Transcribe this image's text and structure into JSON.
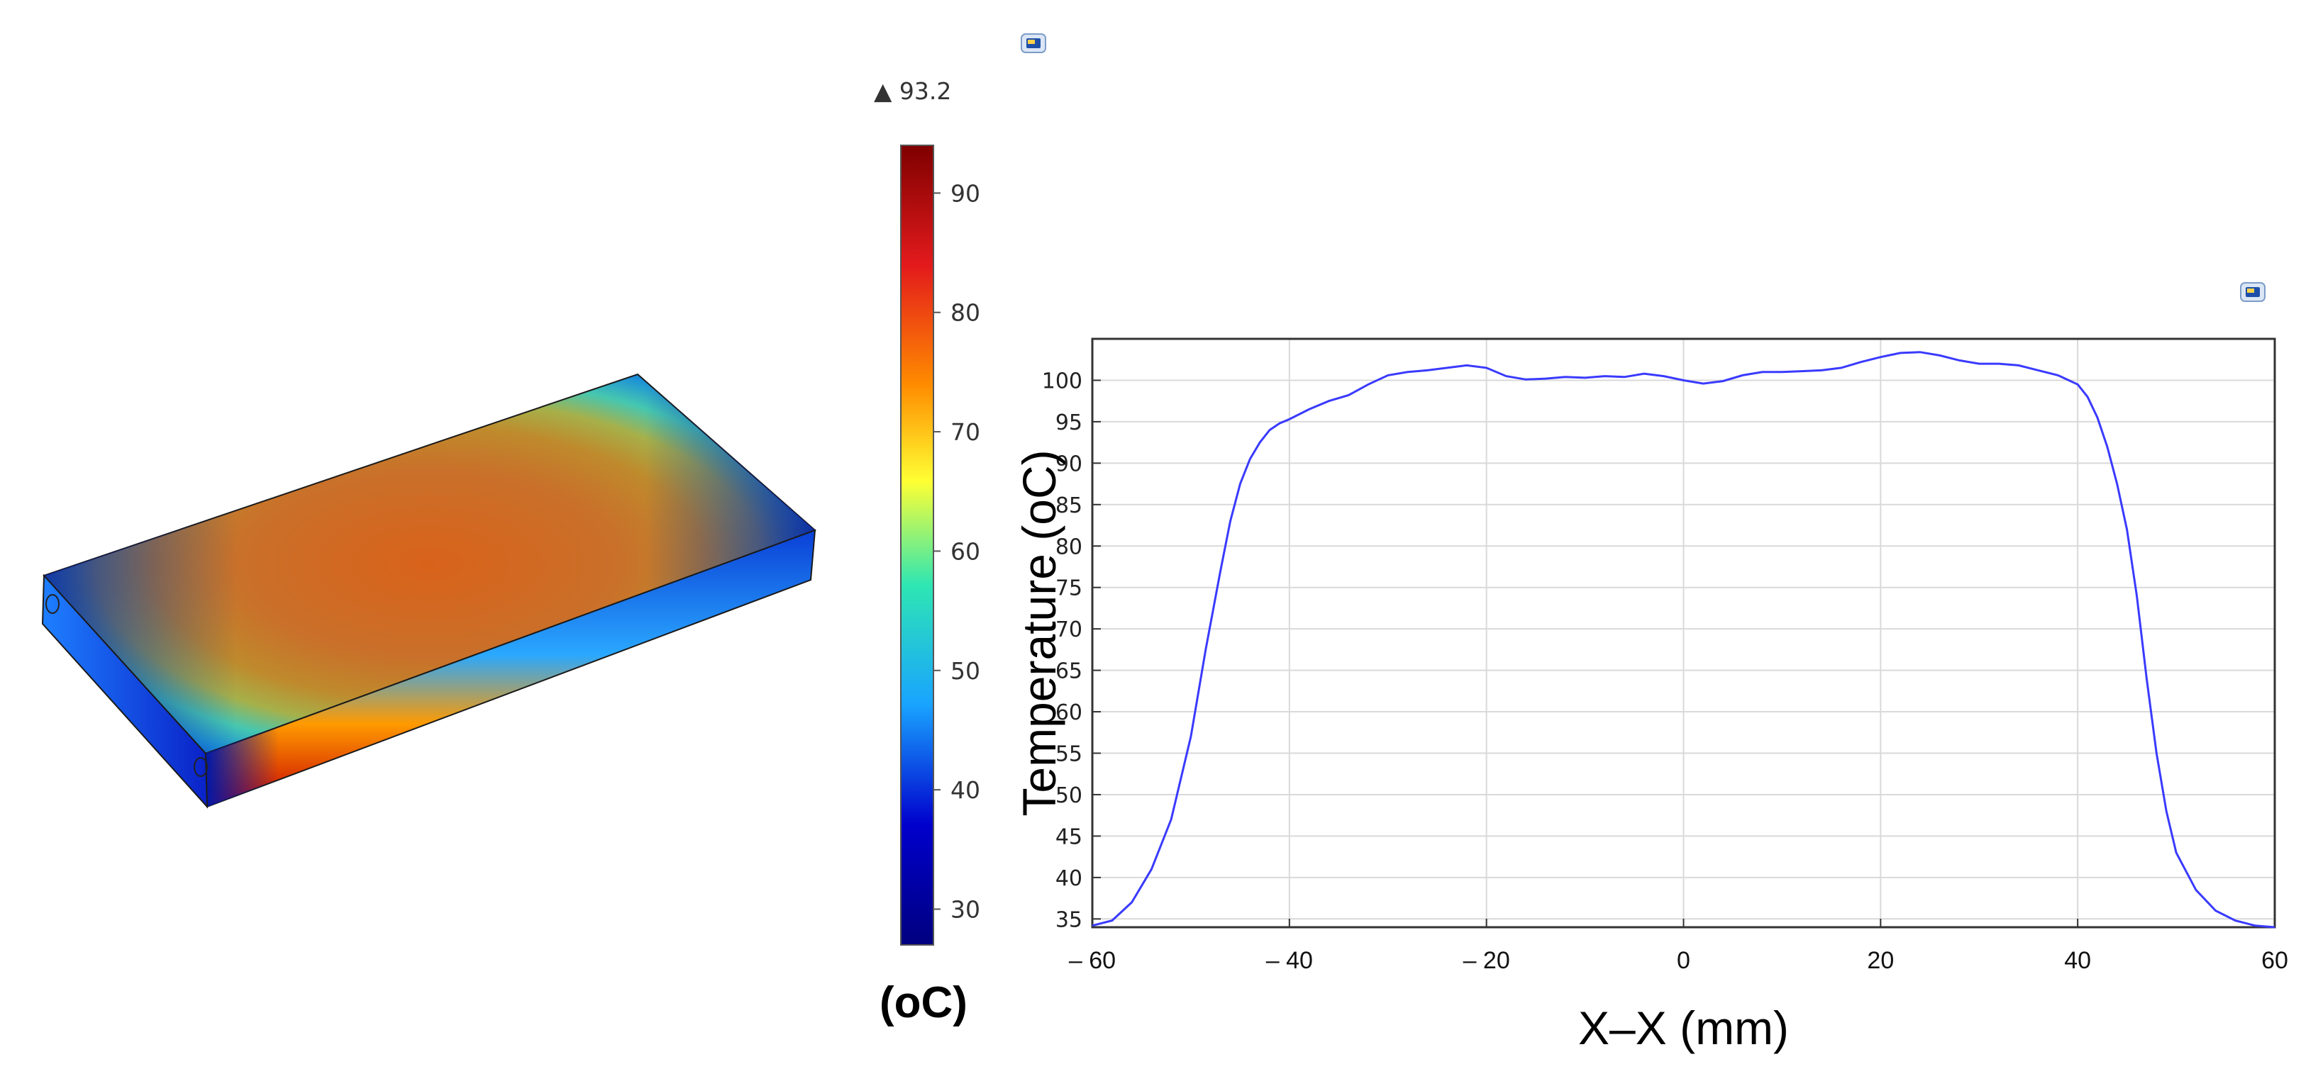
{
  "colorbar": {
    "max_marker": "▲ 93.2",
    "max_value": 93.2,
    "ticks": [
      "90",
      "80",
      "70",
      "60",
      "50",
      "40",
      "30"
    ],
    "range": [
      27,
      94
    ],
    "unit": "(oC)",
    "colormap": [
      "#7f0000",
      "#e31a1c",
      "#ff8c00",
      "#ffff33",
      "#2ee6b3",
      "#19a3ff",
      "#0000cc",
      "#00007f"
    ]
  },
  "icons": [
    "window-icon",
    "window-icon"
  ],
  "chart_data": {
    "type": "line",
    "xlabel": "X–X (mm)",
    "ylabel": "Temperature (oC)",
    "xlim": [
      -60,
      60
    ],
    "ylim": [
      34,
      105
    ],
    "grid": true,
    "x_tick_labels": [
      "– 60",
      "– 40",
      "– 20",
      "0",
      "20",
      "40",
      "60"
    ],
    "x_tick_values": [
      -60,
      -40,
      -20,
      0,
      20,
      40,
      60
    ],
    "y_ticks": [
      35,
      40,
      45,
      50,
      55,
      60,
      65,
      70,
      75,
      80,
      85,
      90,
      95,
      100
    ],
    "series": [
      {
        "color": "#3a3aff",
        "x": [
          -60,
          -58,
          -56,
          -54,
          -52,
          -50,
          -48.5,
          -47,
          -46,
          -45,
          -44,
          -43,
          -42,
          -41,
          -40,
          -38,
          -36,
          -34,
          -32,
          -30,
          -28,
          -26,
          -24,
          -22,
          -20,
          -18,
          -16,
          -14,
          -12,
          -10,
          -8,
          -6,
          -4,
          -2,
          0,
          2,
          4,
          6,
          8,
          10,
          12,
          14,
          16,
          18,
          20,
          22,
          24,
          26,
          28,
          30,
          32,
          34,
          36,
          38,
          40,
          41,
          42,
          43,
          44,
          45,
          46,
          47,
          48,
          49,
          50,
          52,
          54,
          56,
          58,
          60
        ],
        "y": [
          34.2,
          34.8,
          37,
          41,
          47,
          57,
          67.5,
          77,
          83,
          87.5,
          90.5,
          92.5,
          94,
          94.8,
          95.3,
          96.5,
          97.5,
          98.2,
          99.5,
          100.6,
          101,
          101.2,
          101.5,
          101.8,
          101.5,
          100.5,
          100.1,
          100.2,
          100.4,
          100.3,
          100.5,
          100.4,
          100.8,
          100.5,
          100,
          99.6,
          99.9,
          100.6,
          101,
          101,
          101.1,
          101.2,
          101.5,
          102.2,
          102.8,
          103.3,
          103.4,
          103,
          102.4,
          102,
          102,
          101.8,
          101.2,
          100.6,
          99.5,
          98,
          95.5,
          92,
          87.5,
          82,
          74,
          64,
          55,
          48,
          43,
          38.5,
          36,
          34.8,
          34.2,
          34
        ]
      }
    ]
  }
}
